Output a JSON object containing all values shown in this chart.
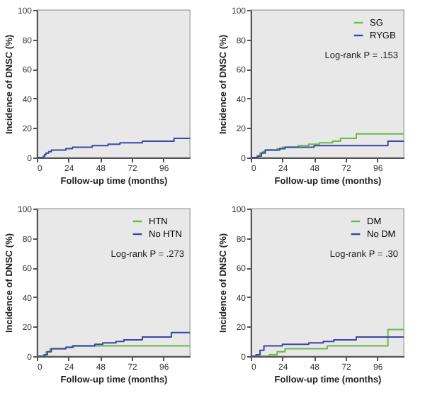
{
  "chart_data": [
    {
      "type": "step",
      "xlabel": "Follow-up time (months)",
      "ylabel": "Incidence of DNSC (%)",
      "xlim": [
        0,
        116
      ],
      "xticks": [
        0,
        24,
        48,
        72,
        96
      ],
      "ylim": [
        0,
        100
      ],
      "yticks": [
        0,
        20,
        40,
        60,
        80,
        100
      ],
      "legend": false,
      "series": [
        {
          "color": "#3b46a8",
          "x": [
            0,
            5,
            6,
            7,
            9,
            11,
            22,
            27,
            42,
            54,
            63,
            80,
            104,
            116
          ],
          "values": [
            0,
            1,
            2,
            3,
            4,
            5,
            6,
            7,
            8,
            9,
            10,
            11,
            13,
            13
          ]
        }
      ]
    },
    {
      "type": "step",
      "xlabel": "Follow-up time (months)",
      "ylabel": "Incidence of DNSC (%)",
      "xlim": [
        0,
        116
      ],
      "xticks": [
        0,
        24,
        48,
        72,
        96
      ],
      "ylim": [
        0,
        100
      ],
      "yticks": [
        0,
        20,
        40,
        60,
        80,
        100
      ],
      "legend": "top right",
      "annotations": [
        "Log-rank P = .153"
      ],
      "series": [
        {
          "name": "SG",
          "color": "#6cb84a",
          "x": [
            0,
            5,
            7,
            9,
            11,
            20,
            24,
            36,
            44,
            52,
            62,
            68,
            80,
            116
          ],
          "values": [
            0,
            1,
            3,
            4,
            5,
            6,
            7,
            8,
            9,
            10,
            11,
            13,
            16,
            16
          ]
        },
        {
          "name": "RYGB",
          "color": "#3b46a8",
          "x": [
            0,
            5,
            8,
            11,
            22,
            26,
            48,
            104,
            116
          ],
          "values": [
            0,
            1,
            3,
            5,
            6,
            7,
            8,
            11,
            11
          ]
        }
      ]
    },
    {
      "type": "step",
      "xlabel": "Follow-up time (months)",
      "ylabel": "Incidence of DNSC (%)",
      "xlim": [
        0,
        116
      ],
      "xticks": [
        0,
        24,
        48,
        72,
        96
      ],
      "ylim": [
        0,
        100
      ],
      "yticks": [
        0,
        20,
        40,
        60,
        80,
        100
      ],
      "legend": "top right",
      "annotations": [
        "Log-rank P = .273"
      ],
      "series": [
        {
          "name": "HTN",
          "color": "#6cb84a",
          "x": [
            0,
            5,
            7,
            10,
            22,
            28,
            116
          ],
          "values": [
            0,
            1,
            3,
            5,
            6,
            7,
            7
          ]
        },
        {
          "name": "No HTN",
          "color": "#3b46a8",
          "x": [
            0,
            6,
            8,
            11,
            22,
            27,
            44,
            50,
            60,
            66,
            80,
            102,
            116
          ],
          "values": [
            0,
            1,
            3,
            5,
            6,
            7,
            8,
            9,
            10,
            11,
            13,
            16,
            16
          ]
        }
      ]
    },
    {
      "type": "step",
      "xlabel": "Follow-up time (months)",
      "ylabel": "Incidence of DNSC (%)",
      "xlim": [
        0,
        116
      ],
      "xticks": [
        0,
        24,
        48,
        72,
        96
      ],
      "ylim": [
        0,
        100
      ],
      "yticks": [
        0,
        20,
        40,
        60,
        80,
        100
      ],
      "legend": "top right",
      "annotations": [
        "Log-rank P = .30"
      ],
      "series": [
        {
          "name": "DM",
          "color": "#6cb84a",
          "x": [
            0,
            14,
            20,
            26,
            58,
            104,
            116
          ],
          "values": [
            0,
            1,
            3,
            5,
            7,
            18,
            18
          ]
        },
        {
          "name": "No DM",
          "color": "#3b46a8",
          "x": [
            0,
            4,
            7,
            10,
            24,
            44,
            55,
            63,
            80,
            116
          ],
          "values": [
            0,
            1,
            4,
            7,
            8,
            9,
            10,
            11,
            13,
            13
          ]
        }
      ]
    }
  ]
}
